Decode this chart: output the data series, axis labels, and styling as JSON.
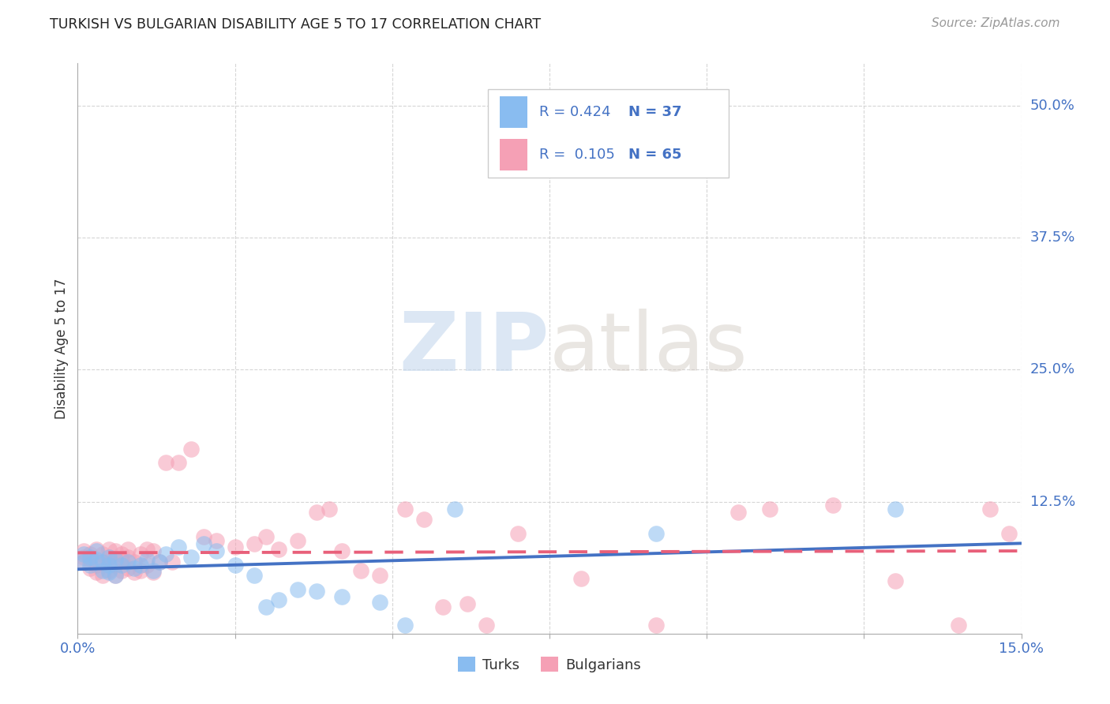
{
  "title": "TURKISH VS BULGARIAN DISABILITY AGE 5 TO 17 CORRELATION CHART",
  "source": "Source: ZipAtlas.com",
  "ylabel": "Disability Age 5 to 17",
  "xlim": [
    0.0,
    0.15
  ],
  "ylim": [
    0.0,
    0.54
  ],
  "xticks": [
    0.0,
    0.025,
    0.05,
    0.075,
    0.1,
    0.125,
    0.15
  ],
  "ytick_labels": [
    "50.0%",
    "37.5%",
    "25.0%",
    "12.5%"
  ],
  "ytick_positions": [
    0.5,
    0.375,
    0.25,
    0.125
  ],
  "legend_turks_R": "0.424",
  "legend_turks_N": "37",
  "legend_bulgarians_R": "0.105",
  "legend_bulgarians_N": "65",
  "turks_color": "#89BCF0",
  "bulgarians_color": "#F5A0B5",
  "turks_line_color": "#4472C4",
  "bulgarians_line_color": "#E8607A",
  "turks_x": [
    0.001,
    0.001,
    0.002,
    0.002,
    0.003,
    0.003,
    0.004,
    0.004,
    0.005,
    0.005,
    0.005,
    0.006,
    0.006,
    0.007,
    0.008,
    0.009,
    0.01,
    0.011,
    0.012,
    0.013,
    0.014,
    0.016,
    0.018,
    0.02,
    0.022,
    0.025,
    0.028,
    0.03,
    0.032,
    0.035,
    0.038,
    0.042,
    0.048,
    0.052,
    0.06,
    0.092,
    0.13
  ],
  "turks_y": [
    0.068,
    0.075,
    0.065,
    0.072,
    0.07,
    0.078,
    0.06,
    0.068,
    0.058,
    0.065,
    0.072,
    0.055,
    0.07,
    0.065,
    0.068,
    0.062,
    0.065,
    0.07,
    0.06,
    0.068,
    0.075,
    0.082,
    0.072,
    0.085,
    0.078,
    0.065,
    0.055,
    0.025,
    0.032,
    0.042,
    0.04,
    0.035,
    0.03,
    0.008,
    0.118,
    0.095,
    0.118
  ],
  "bulgarians_x": [
    0.001,
    0.001,
    0.001,
    0.002,
    0.002,
    0.002,
    0.003,
    0.003,
    0.003,
    0.004,
    0.004,
    0.004,
    0.005,
    0.005,
    0.005,
    0.005,
    0.006,
    0.006,
    0.006,
    0.007,
    0.007,
    0.007,
    0.008,
    0.008,
    0.008,
    0.009,
    0.009,
    0.01,
    0.01,
    0.011,
    0.011,
    0.012,
    0.012,
    0.013,
    0.014,
    0.015,
    0.016,
    0.018,
    0.02,
    0.022,
    0.025,
    0.028,
    0.03,
    0.032,
    0.035,
    0.038,
    0.04,
    0.042,
    0.045,
    0.048,
    0.052,
    0.055,
    0.058,
    0.062,
    0.065,
    0.07,
    0.08,
    0.092,
    0.105,
    0.11,
    0.12,
    0.13,
    0.14,
    0.145,
    0.148
  ],
  "bulgarians_y": [
    0.068,
    0.072,
    0.078,
    0.062,
    0.07,
    0.075,
    0.058,
    0.065,
    0.08,
    0.055,
    0.068,
    0.075,
    0.06,
    0.068,
    0.072,
    0.08,
    0.055,
    0.065,
    0.078,
    0.06,
    0.07,
    0.075,
    0.062,
    0.072,
    0.08,
    0.058,
    0.068,
    0.06,
    0.075,
    0.065,
    0.08,
    0.058,
    0.078,
    0.068,
    0.162,
    0.068,
    0.162,
    0.175,
    0.092,
    0.088,
    0.082,
    0.085,
    0.092,
    0.08,
    0.088,
    0.115,
    0.118,
    0.078,
    0.06,
    0.055,
    0.118,
    0.108,
    0.025,
    0.028,
    0.008,
    0.095,
    0.052,
    0.008,
    0.115,
    0.118,
    0.122,
    0.05,
    0.008,
    0.118,
    0.095
  ],
  "watermark_zip": "ZIP",
  "watermark_atlas": "atlas",
  "background_color": "#ffffff",
  "grid_color": "#cccccc"
}
